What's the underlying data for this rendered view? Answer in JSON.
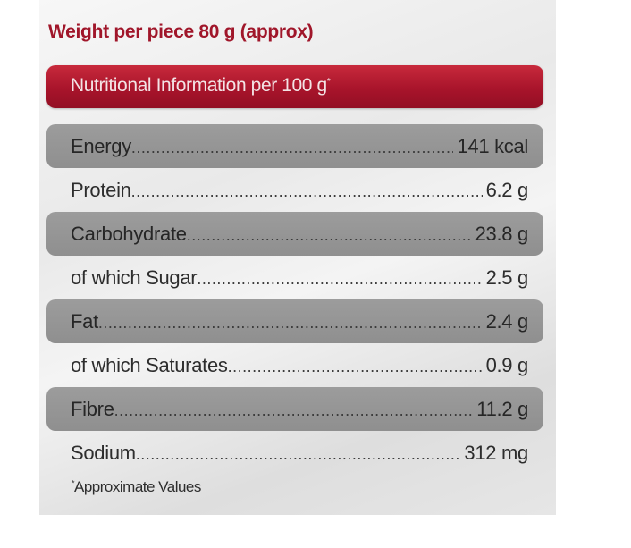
{
  "weight_title": "Weight per piece 80 g (approx)",
  "header": {
    "text": "Nutritional Information per 100 g",
    "mark": "*"
  },
  "nutrients": [
    {
      "label": "Energy",
      "value": "141 kcal"
    },
    {
      "label": "Protein",
      "value": "6.2 g"
    },
    {
      "label": "Carbohydrate",
      "value": "23.8 g"
    },
    {
      "label": "of which Sugar",
      "value": "2.5 g"
    },
    {
      "label": "Fat",
      "value": "2.4 g"
    },
    {
      "label": "of which Saturates",
      "value": "0.9 g"
    },
    {
      "label": "Fibre",
      "value": "11.2 g"
    },
    {
      "label": "Sodium",
      "value": "312 mg"
    }
  ],
  "footnote": {
    "mark": "*",
    "text": "Approximate Values"
  },
  "colors": {
    "brand_red": "#a0162a",
    "header_bar": "#a8142b",
    "row_shade": "#969696"
  }
}
